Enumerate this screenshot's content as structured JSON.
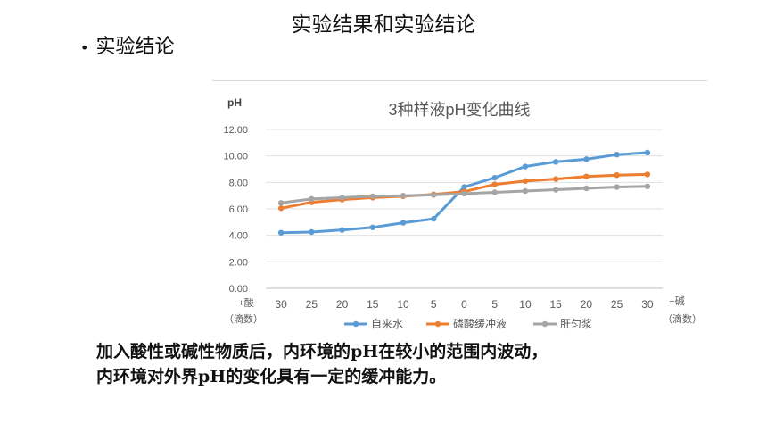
{
  "slide": {
    "title": "实验结果和实验结论",
    "bullet": "实验结论",
    "conclusion_line1": "加入酸性或碱性物质后，内环境的pH在较小的范围内波动，",
    "conclusion_line2": "内环境对外界pH的变化具有一定的缓冲能力。"
  },
  "chart_data": {
    "type": "line",
    "title": "3种样液pH变化曲线",
    "ylabel": "pH",
    "ylim": [
      0,
      12
    ],
    "yticks": [
      "0.00",
      "2.00",
      "4.00",
      "6.00",
      "8.00",
      "10.00",
      "12.00"
    ],
    "categories": [
      "30",
      "25",
      "20",
      "15",
      "10",
      "5",
      "0",
      "5",
      "10",
      "15",
      "20",
      "25",
      "30"
    ],
    "x_left_label": [
      "+酸",
      "（滴数）"
    ],
    "x_right_label": [
      "+碱",
      "（滴数）"
    ],
    "grid": true,
    "legend_position": "bottom",
    "series": [
      {
        "name": "自来水",
        "color": "#5b9bd5",
        "values": [
          4.2,
          4.25,
          4.4,
          4.6,
          4.95,
          5.25,
          7.65,
          8.35,
          9.2,
          9.55,
          9.75,
          10.1,
          10.25
        ]
      },
      {
        "name": "磷酸缓冲液",
        "color": "#ed7d31",
        "values": [
          6.05,
          6.5,
          6.7,
          6.85,
          6.95,
          7.1,
          7.3,
          7.85,
          8.1,
          8.25,
          8.45,
          8.55,
          8.6
        ]
      },
      {
        "name": "肝匀浆",
        "color": "#a5a5a5",
        "values": [
          6.45,
          6.75,
          6.85,
          6.95,
          7.0,
          7.05,
          7.15,
          7.25,
          7.35,
          7.45,
          7.55,
          7.65,
          7.7
        ]
      }
    ]
  }
}
